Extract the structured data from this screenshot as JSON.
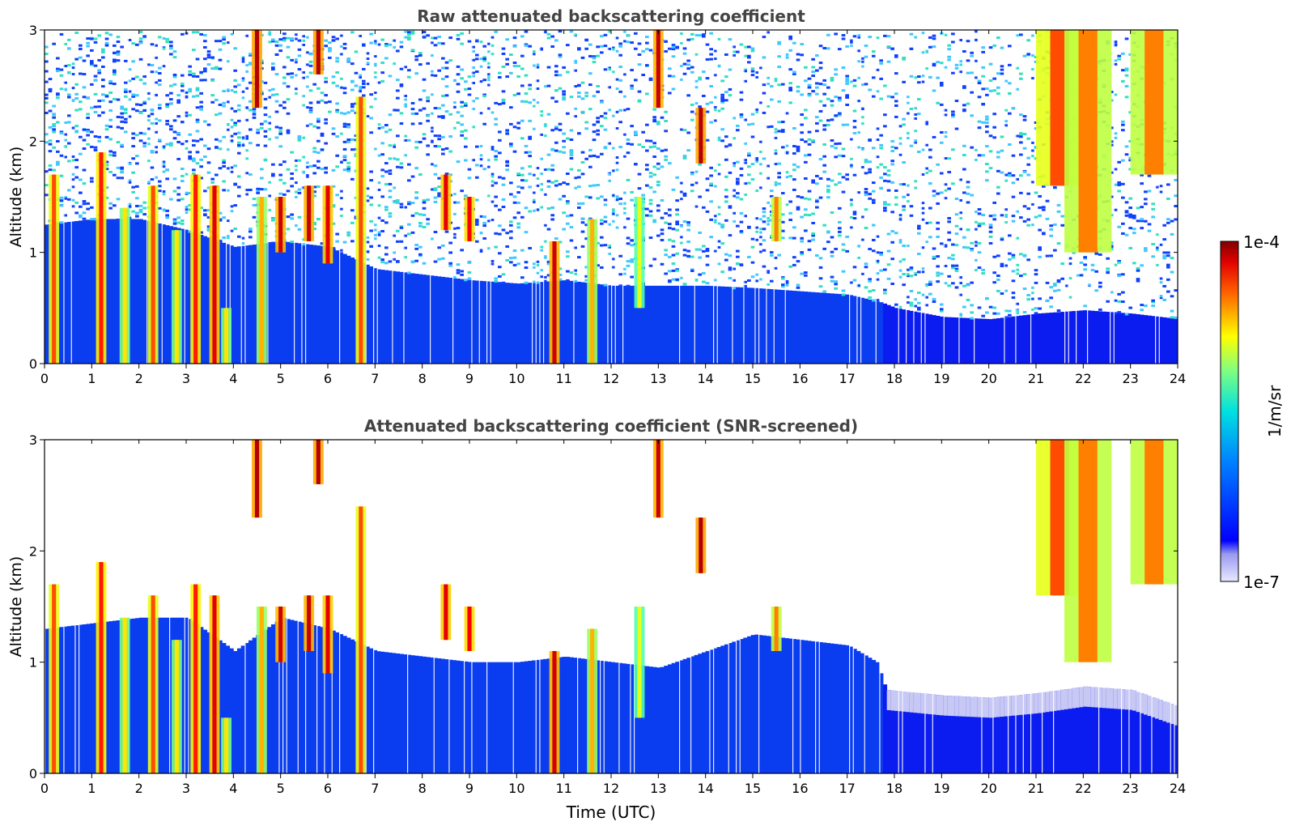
{
  "chart_data": [
    {
      "type": "heatmap",
      "title": "Raw attenuated backscattering coefficient",
      "xlabel": "",
      "ylabel": "Altitude (km)",
      "x_ticks": [
        "0",
        "1",
        "2",
        "3",
        "4",
        "5",
        "6",
        "7",
        "8",
        "9",
        "10",
        "11",
        "12",
        "13",
        "14",
        "15",
        "16",
        "17",
        "18",
        "19",
        "20",
        "21",
        "22",
        "23",
        "24"
      ],
      "y_ticks": [
        "0",
        "1",
        "2",
        "3"
      ],
      "xlim": [
        0,
        24
      ],
      "ylim": [
        0,
        3
      ],
      "noise_floor_km": [
        [
          0,
          1.25
        ],
        [
          1,
          1.3
        ],
        [
          2,
          1.3
        ],
        [
          3,
          1.2
        ],
        [
          4,
          1.05
        ],
        [
          5,
          1.1
        ],
        [
          6,
          1.05
        ],
        [
          7,
          0.85
        ],
        [
          8,
          0.8
        ],
        [
          9,
          0.75
        ],
        [
          10,
          0.72
        ],
        [
          11,
          0.75
        ],
        [
          12,
          0.7
        ],
        [
          13,
          0.7
        ],
        [
          14,
          0.7
        ],
        [
          15,
          0.68
        ],
        [
          16,
          0.65
        ],
        [
          17,
          0.62
        ],
        [
          17.7,
          0.55
        ],
        [
          18,
          0.5
        ],
        [
          19,
          0.42
        ],
        [
          20,
          0.4
        ],
        [
          21,
          0.45
        ],
        [
          22,
          0.48
        ],
        [
          23,
          0.45
        ],
        [
          24,
          0.4
        ]
      ],
      "features": [
        {
          "t": 0.2,
          "z0": 0,
          "z1": 1.7,
          "v": 0.8
        },
        {
          "t": 1.2,
          "z0": 0,
          "z1": 1.9,
          "v": 0.85
        },
        {
          "t": 1.7,
          "z0": 0,
          "z1": 1.4,
          "v": 0.65
        },
        {
          "t": 2.3,
          "z0": 0,
          "z1": 1.6,
          "v": 0.8
        },
        {
          "t": 2.8,
          "z0": 0,
          "z1": 1.2,
          "v": 0.65
        },
        {
          "t": 3.2,
          "z0": 0,
          "z1": 1.7,
          "v": 0.85
        },
        {
          "t": 3.6,
          "z0": 0,
          "z1": 1.6,
          "v": 0.9
        },
        {
          "t": 3.85,
          "z0": 0,
          "z1": 0.5,
          "v": 0.65
        },
        {
          "t": 4.6,
          "z0": 0,
          "z1": 1.5,
          "v": 0.7
        },
        {
          "t": 5.0,
          "z0": 1.0,
          "z1": 1.5,
          "v": 0.92
        },
        {
          "t": 5.6,
          "z0": 1.1,
          "z1": 1.6,
          "v": 0.93
        },
        {
          "t": 6.0,
          "z0": 0.9,
          "z1": 1.6,
          "v": 0.9
        },
        {
          "t": 6.7,
          "z0": 0,
          "z1": 2.4,
          "v": 0.8
        },
        {
          "t": 8.5,
          "z0": 1.2,
          "z1": 1.7,
          "v": 0.9
        },
        {
          "t": 9.0,
          "z0": 1.1,
          "z1": 1.5,
          "v": 0.88
        },
        {
          "t": 10.8,
          "z0": 0,
          "z1": 1.1,
          "v": 0.92
        },
        {
          "t": 11.6,
          "z0": 0,
          "z1": 1.3,
          "v": 0.7
        },
        {
          "t": 12.6,
          "z0": 0.5,
          "z1": 1.5,
          "v": 0.6
        },
        {
          "t": 13.0,
          "z0": 2.3,
          "z1": 3.0,
          "v": 0.93
        },
        {
          "t": 13.9,
          "z0": 1.8,
          "z1": 2.3,
          "v": 0.95
        },
        {
          "t": 4.5,
          "z0": 2.3,
          "z1": 3.0,
          "v": 0.95
        },
        {
          "t": 5.8,
          "z0": 2.6,
          "z1": 3.0,
          "v": 0.95
        },
        {
          "t": 15.5,
          "z0": 1.1,
          "z1": 1.5,
          "v": 0.75
        },
        {
          "t": 21.5,
          "z0": 1.6,
          "z1": 3.0,
          "v": 0.8
        },
        {
          "t": 22.1,
          "z0": 1.0,
          "z1": 3.0,
          "v": 0.75
        },
        {
          "t": 23.5,
          "z0": 1.7,
          "z1": 3.0,
          "v": 0.75
        }
      ]
    },
    {
      "type": "heatmap",
      "title": "Attenuated backscattering coefficient (SNR-screened)",
      "xlabel": "Time (UTC)",
      "ylabel": "Altitude (km)",
      "x_ticks": [
        "0",
        "1",
        "2",
        "3",
        "4",
        "5",
        "6",
        "7",
        "8",
        "9",
        "10",
        "11",
        "12",
        "13",
        "14",
        "15",
        "16",
        "17",
        "18",
        "19",
        "20",
        "21",
        "22",
        "23",
        "24"
      ],
      "y_ticks": [
        "0",
        "1",
        "2",
        "3"
      ],
      "xlim": [
        0,
        24
      ],
      "ylim": [
        0,
        3
      ],
      "screened_top_km": [
        [
          0,
          1.3
        ],
        [
          1,
          1.35
        ],
        [
          2,
          1.4
        ],
        [
          3,
          1.4
        ],
        [
          4,
          1.1
        ],
        [
          5,
          1.4
        ],
        [
          6,
          1.3
        ],
        [
          7,
          1.1
        ],
        [
          8,
          1.05
        ],
        [
          9,
          1.0
        ],
        [
          10,
          1.0
        ],
        [
          11,
          1.05
        ],
        [
          12,
          1.0
        ],
        [
          13,
          0.95
        ],
        [
          14,
          1.1
        ],
        [
          15,
          1.25
        ],
        [
          16,
          1.2
        ],
        [
          17,
          1.15
        ],
        [
          17.6,
          1.0
        ],
        [
          17.8,
          0.75
        ],
        [
          19,
          0.7
        ],
        [
          20,
          0.68
        ],
        [
          21,
          0.72
        ],
        [
          22,
          0.78
        ],
        [
          23,
          0.75
        ],
        [
          24,
          0.6
        ]
      ],
      "features": [
        {
          "t": 0.2,
          "z0": 0,
          "z1": 1.7,
          "v": 0.8
        },
        {
          "t": 1.2,
          "z0": 0,
          "z1": 1.9,
          "v": 0.85
        },
        {
          "t": 1.7,
          "z0": 0,
          "z1": 1.4,
          "v": 0.65
        },
        {
          "t": 2.3,
          "z0": 0,
          "z1": 1.6,
          "v": 0.8
        },
        {
          "t": 2.8,
          "z0": 0,
          "z1": 1.2,
          "v": 0.65
        },
        {
          "t": 3.2,
          "z0": 0,
          "z1": 1.7,
          "v": 0.85
        },
        {
          "t": 3.6,
          "z0": 0,
          "z1": 1.6,
          "v": 0.9
        },
        {
          "t": 3.85,
          "z0": 0,
          "z1": 0.5,
          "v": 0.65
        },
        {
          "t": 4.6,
          "z0": 0,
          "z1": 1.5,
          "v": 0.7
        },
        {
          "t": 5.0,
          "z0": 1.0,
          "z1": 1.5,
          "v": 0.92
        },
        {
          "t": 5.6,
          "z0": 1.1,
          "z1": 1.6,
          "v": 0.93
        },
        {
          "t": 6.0,
          "z0": 0.9,
          "z1": 1.6,
          "v": 0.9
        },
        {
          "t": 6.7,
          "z0": 0,
          "z1": 2.4,
          "v": 0.8
        },
        {
          "t": 8.5,
          "z0": 1.2,
          "z1": 1.7,
          "v": 0.9
        },
        {
          "t": 9.0,
          "z0": 1.1,
          "z1": 1.5,
          "v": 0.88
        },
        {
          "t": 10.8,
          "z0": 0,
          "z1": 1.1,
          "v": 0.92
        },
        {
          "t": 11.6,
          "z0": 0,
          "z1": 1.3,
          "v": 0.7
        },
        {
          "t": 12.6,
          "z0": 0.5,
          "z1": 1.5,
          "v": 0.6
        },
        {
          "t": 13.0,
          "z0": 2.3,
          "z1": 3.0,
          "v": 0.93
        },
        {
          "t": 13.9,
          "z0": 1.8,
          "z1": 2.3,
          "v": 0.95
        },
        {
          "t": 4.5,
          "z0": 2.3,
          "z1": 3.0,
          "v": 0.95
        },
        {
          "t": 5.8,
          "z0": 2.6,
          "z1": 3.0,
          "v": 0.95
        },
        {
          "t": 15.5,
          "z0": 1.1,
          "z1": 1.5,
          "v": 0.75
        },
        {
          "t": 21.5,
          "z0": 1.6,
          "z1": 3.0,
          "v": 0.8
        },
        {
          "t": 22.1,
          "z0": 1.0,
          "z1": 3.0,
          "v": 0.75
        },
        {
          "t": 23.5,
          "z0": 1.7,
          "z1": 3.0,
          "v": 0.75
        }
      ]
    }
  ],
  "colorbar": {
    "max_label": "1e-4",
    "min_label": "1e-7",
    "units_label": "1/m/sr",
    "colormap": "jet"
  }
}
